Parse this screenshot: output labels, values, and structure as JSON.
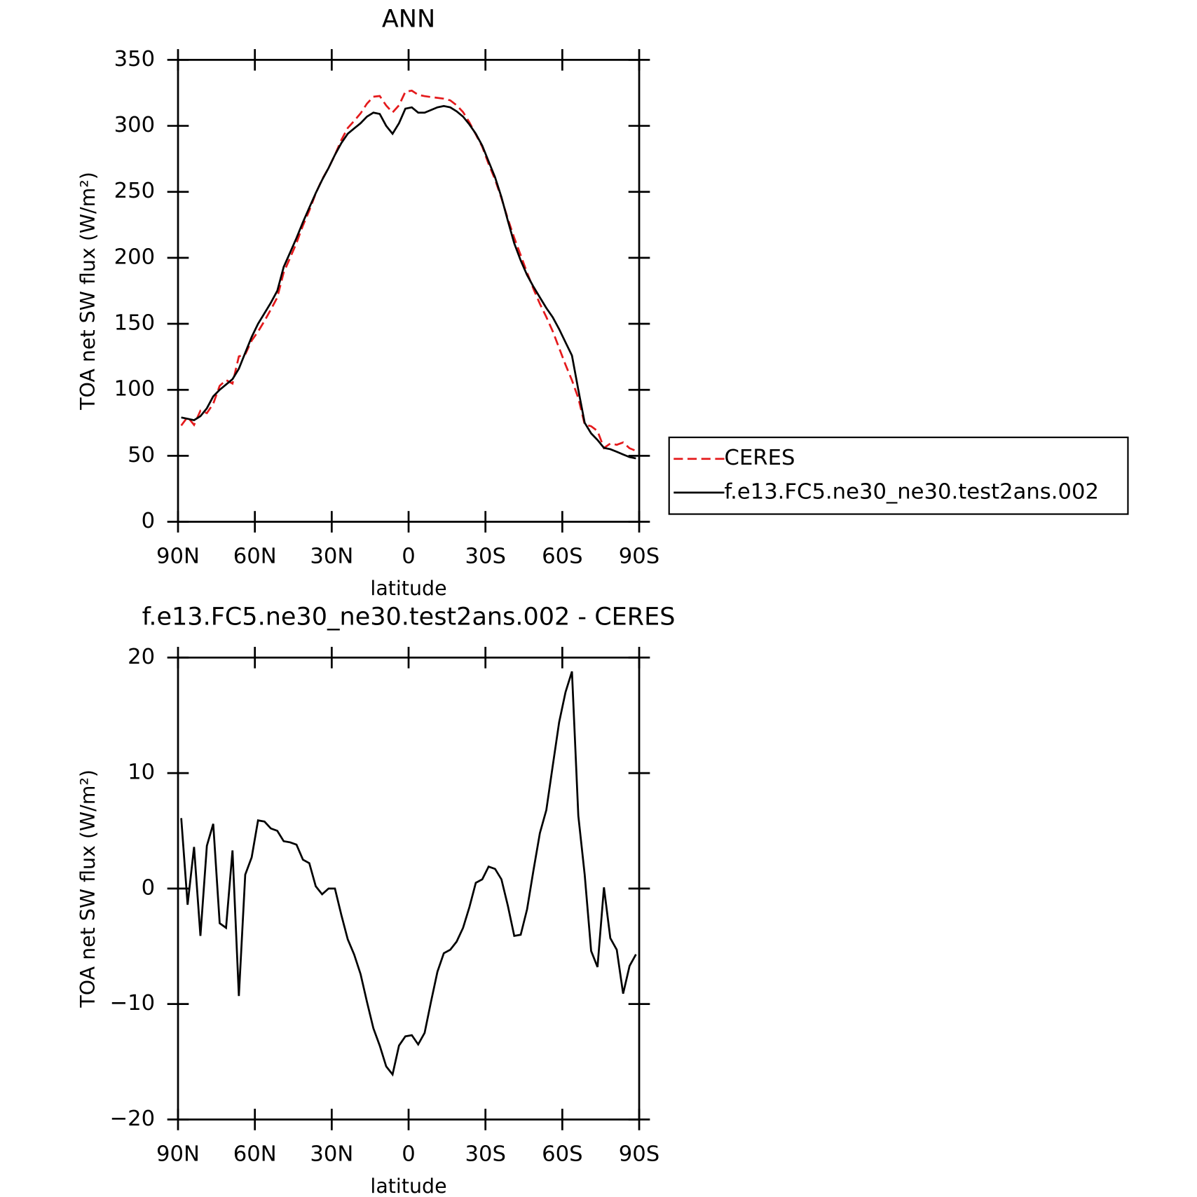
{
  "chart_data": [
    {
      "type": "line",
      "title": "ANN",
      "xlabel": "latitude",
      "ylabel": "TOA net SW flux (W/m²)",
      "x": [
        88.75,
        86.25,
        83.75,
        81.25,
        78.75,
        76.25,
        73.75,
        71.25,
        68.75,
        66.25,
        63.75,
        61.25,
        58.75,
        56.25,
        53.75,
        51.25,
        48.75,
        46.25,
        43.75,
        41.25,
        38.75,
        36.25,
        33.75,
        31.25,
        28.75,
        26.25,
        23.75,
        21.25,
        18.75,
        16.25,
        13.75,
        11.25,
        8.75,
        6.25,
        3.75,
        1.25,
        -1.25,
        -3.75,
        -6.25,
        -8.75,
        -11.25,
        -13.75,
        -16.25,
        -18.75,
        -21.25,
        -23.75,
        -26.25,
        -28.75,
        -31.25,
        -33.75,
        -36.25,
        -38.75,
        -41.25,
        -43.75,
        -46.25,
        -48.75,
        -51.25,
        -53.75,
        -56.25,
        -58.75,
        -61.25,
        -63.75,
        -66.25,
        -68.75,
        -71.25,
        -73.75,
        -76.25,
        -78.75,
        -81.25,
        -83.75,
        -86.25,
        -88.75
      ],
      "series": [
        {
          "name": "CERES",
          "color": "#e41a1c",
          "line_style": "dashed",
          "values": [
            72.9,
            79.4,
            73.4,
            84.1,
            82.3,
            89.4,
            103,
            107.4,
            104.7,
            125.3,
            126.8,
            137.3,
            144.1,
            152.2,
            160.8,
            170,
            188.9,
            200,
            211.2,
            224.5,
            235.8,
            248.8,
            259.5,
            268,
            278,
            289.3,
            298.4,
            303.7,
            309.4,
            316.8,
            322.1,
            322.6,
            315.4,
            310.1,
            315.6,
            325.8,
            326.7,
            323.5,
            322.5,
            321.8,
            321.2,
            320.6,
            319.3,
            315.6,
            310.4,
            302.6,
            293.5,
            284.2,
            271.1,
            259.3,
            245.2,
            229.5,
            215.1,
            202,
            188.8,
            176.4,
            165.2,
            155.2,
            144.4,
            131.6,
            119,
            107.2,
            93.7,
            73.8,
            72.4,
            68.8,
            55.9,
            59.3,
            58.3,
            60.1,
            55.7,
            53.7
          ]
        },
        {
          "name": "f.e13.FC5.ne30_ne30.test2ans.002",
          "color": "#000000",
          "line_style": "solid",
          "values": [
            79,
            78,
            77,
            80,
            86,
            95,
            100,
            104,
            108,
            116,
            128,
            140,
            150,
            158,
            166,
            175,
            193,
            204,
            215,
            227,
            238,
            249,
            259,
            268,
            278,
            287,
            294,
            298,
            302,
            307,
            310,
            309,
            300,
            294,
            302,
            313,
            314,
            310,
            310,
            312,
            314,
            315,
            314,
            311,
            307,
            301,
            294,
            285,
            273,
            261,
            246,
            228,
            211,
            198,
            187,
            178,
            170,
            162,
            155,
            146,
            136,
            126,
            100,
            75,
            67,
            62,
            56,
            55,
            53,
            51,
            49,
            48
          ]
        }
      ],
      "xlim": [
        90,
        -90
      ],
      "xticks": [
        {
          "value": 90,
          "label": "90N"
        },
        {
          "value": 60,
          "label": "60N"
        },
        {
          "value": 30,
          "label": "30N"
        },
        0,
        {
          "value": -30,
          "label": "30S"
        },
        {
          "value": -60,
          "label": "60S"
        },
        {
          "value": -90,
          "label": "90S"
        }
      ],
      "ylim": [
        0,
        350
      ],
      "yticks": [
        0,
        50,
        100,
        150,
        200,
        250,
        300,
        350
      ],
      "legend": "right"
    },
    {
      "type": "line",
      "title": "f.e13.FC5.ne30_ne30.test2ans.002 - CERES",
      "xlabel": "latitude",
      "ylabel": "TOA net SW flux (W/m²)",
      "x": [
        88.75,
        86.25,
        83.75,
        81.25,
        78.75,
        76.25,
        73.75,
        71.25,
        68.75,
        66.25,
        63.75,
        61.25,
        58.75,
        56.25,
        53.75,
        51.25,
        48.75,
        46.25,
        43.75,
        41.25,
        38.75,
        36.25,
        33.75,
        31.25,
        28.75,
        26.25,
        23.75,
        21.25,
        18.75,
        16.25,
        13.75,
        11.25,
        8.75,
        6.25,
        3.75,
        1.25,
        -1.25,
        -3.75,
        -6.25,
        -8.75,
        -11.25,
        -13.75,
        -16.25,
        -18.75,
        -21.25,
        -23.75,
        -26.25,
        -28.75,
        -31.25,
        -33.75,
        -36.25,
        -38.75,
        -41.25,
        -43.75,
        -46.25,
        -48.75,
        -51.25,
        -53.75,
        -56.25,
        -58.75,
        -61.25,
        -63.75,
        -66.25,
        -68.75,
        -71.25,
        -73.75,
        -76.25,
        -78.75,
        -81.25,
        -83.75,
        -86.25,
        -88.75
      ],
      "series": [
        {
          "color": "#000000",
          "line_style": "solid",
          "values": [
            6.1,
            -1.4,
            3.6,
            -4.1,
            3.7,
            5.6,
            -3.0,
            -3.4,
            3.3,
            -9.3,
            1.2,
            2.7,
            5.9,
            5.8,
            5.2,
            5.0,
            4.1,
            4.0,
            3.8,
            2.5,
            2.2,
            0.2,
            -0.5,
            0.0,
            0.0,
            -2.3,
            -4.4,
            -5.7,
            -7.4,
            -9.8,
            -12.1,
            -13.6,
            -15.4,
            -16.1,
            -13.6,
            -12.8,
            -12.7,
            -13.5,
            -12.5,
            -9.8,
            -7.2,
            -5.6,
            -5.3,
            -4.6,
            -3.4,
            -1.6,
            0.5,
            0.8,
            1.9,
            1.7,
            0.8,
            -1.5,
            -4.1,
            -4.0,
            -1.8,
            1.6,
            4.8,
            6.8,
            10.6,
            14.4,
            17.0,
            18.8,
            6.3,
            1.2,
            -5.4,
            -6.8,
            0.1,
            -4.3,
            -5.3,
            -9.1,
            -6.7,
            -5.7
          ]
        }
      ],
      "xlim": [
        90,
        -90
      ],
      "xticks": [
        {
          "value": 90,
          "label": "90N"
        },
        {
          "value": 60,
          "label": "60N"
        },
        {
          "value": 30,
          "label": "30N"
        },
        0,
        {
          "value": -30,
          "label": "30S"
        },
        {
          "value": -60,
          "label": "60S"
        },
        {
          "value": -90,
          "label": "90S"
        }
      ],
      "ylim": [
        -20,
        20
      ],
      "yticks": [
        {
          "value": -20,
          "label": "−20"
        },
        {
          "value": -10,
          "label": "−10"
        },
        0,
        10,
        20
      ]
    }
  ]
}
